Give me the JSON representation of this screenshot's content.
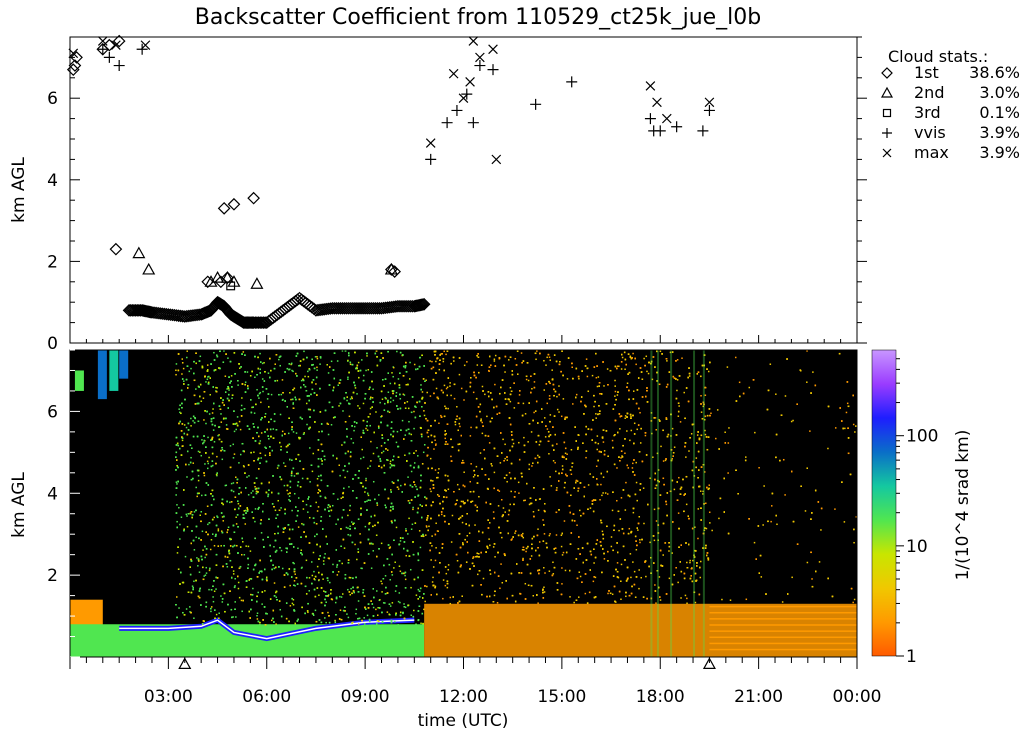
{
  "title": "Backscatter Coefficient from 110529_ct25k_jue_l0b",
  "chart_data": [
    {
      "type": "scatter",
      "panel": "cloud-base-heights",
      "ylabel": "km AGL",
      "ylim": [
        0,
        7.5
      ],
      "yticks": [
        0,
        2,
        4,
        6
      ],
      "xlim": [
        0,
        24
      ],
      "legend": {
        "title": "Cloud stats.:",
        "placement": "top-right",
        "entries": [
          {
            "symbol": "diamond",
            "label": "1st",
            "value": "38.6%"
          },
          {
            "symbol": "triangle",
            "label": "2nd",
            "value": "3.0%"
          },
          {
            "symbol": "square",
            "label": "3rd",
            "value": "0.1%"
          },
          {
            "symbol": "plus",
            "label": "vvis",
            "value": "3.9%"
          },
          {
            "symbol": "cross",
            "label": "max",
            "value": "3.9%"
          }
        ]
      },
      "series": [
        {
          "symbol": "diamond",
          "x": [
            0.1,
            0.15,
            0.2,
            1.0,
            1.2,
            1.5,
            1.8,
            2.2,
            2.5,
            3.0,
            3.5,
            4.0,
            4.3,
            4.5,
            4.7,
            4.9,
            5.1,
            5.3,
            5.6,
            6.0,
            6.5,
            7.0,
            7.5,
            8.0,
            8.5,
            9.0,
            9.5,
            10.0,
            10.5,
            10.8,
            4.2,
            4.6,
            4.8,
            4.7,
            5.0,
            5.6,
            1.4,
            9.8,
            9.9
          ],
          "y": [
            6.7,
            6.8,
            7.0,
            7.2,
            7.3,
            7.4,
            0.8,
            0.8,
            0.75,
            0.7,
            0.65,
            0.7,
            0.8,
            1.0,
            0.9,
            0.7,
            0.6,
            0.5,
            0.5,
            0.5,
            0.8,
            1.1,
            0.8,
            0.85,
            0.85,
            0.85,
            0.85,
            0.9,
            0.9,
            0.95,
            1.5,
            1.5,
            1.6,
            3.3,
            3.4,
            3.55,
            2.3,
            1.8,
            1.75
          ]
        },
        {
          "symbol": "triangle",
          "x": [
            2.1,
            2.4,
            4.3,
            4.5,
            4.8,
            5.0,
            5.7,
            9.8,
            3.5,
            19.5
          ],
          "y": [
            2.2,
            1.8,
            1.5,
            1.6,
            1.6,
            1.5,
            1.45,
            1.8,
            -0.1,
            -0.1
          ]
        },
        {
          "symbol": "square",
          "x": [
            4.9
          ],
          "y": [
            1.4
          ]
        },
        {
          "symbol": "plus",
          "x": [
            1.0,
            1.2,
            1.5,
            2.2,
            11.0,
            11.5,
            11.8,
            12.3,
            12.5,
            12.9,
            12.1,
            14.2,
            15.3,
            17.7,
            17.8,
            18.0,
            18.5,
            19.5,
            19.3
          ],
          "y": [
            7.2,
            7.0,
            6.8,
            7.2,
            4.5,
            5.4,
            5.7,
            5.4,
            6.8,
            6.7,
            6.1,
            5.85,
            6.4,
            5.5,
            5.2,
            5.2,
            5.3,
            5.7,
            5.2
          ]
        },
        {
          "symbol": "cross",
          "x": [
            0.1,
            1.0,
            1.4,
            2.3,
            11.0,
            11.7,
            12.0,
            12.3,
            12.5,
            12.9,
            12.2,
            13.0,
            17.7,
            17.9,
            18.2,
            19.5
          ],
          "y": [
            7.1,
            7.4,
            7.3,
            7.3,
            4.9,
            6.6,
            6.0,
            7.4,
            7.0,
            7.2,
            6.4,
            4.5,
            6.3,
            5.9,
            5.5,
            5.9
          ]
        }
      ]
    },
    {
      "type": "heatmap",
      "panel": "backscatter",
      "ylabel": "km AGL",
      "ylim": [
        0,
        7.5
      ],
      "yticks": [
        2,
        4,
        6
      ],
      "xlabel": "time (UTC)",
      "xlim": [
        0,
        24
      ],
      "xticks": [
        3,
        6,
        9,
        12,
        15,
        18,
        21,
        24
      ],
      "xticklabels": [
        "03:00",
        "06:00",
        "09:00",
        "12:00",
        "15:00",
        "18:00",
        "21:00",
        "00:00"
      ],
      "colorbar": {
        "label": "1/(10^4 srad km)",
        "scale": "log",
        "range": [
          1,
          600
        ],
        "ticks": [
          1,
          10,
          100
        ],
        "ticklabels": [
          "1",
          "10",
          "100"
        ],
        "colors": [
          "#ff5a00",
          "#ff9a00",
          "#f0c800",
          "#c8e600",
          "#50e650",
          "#14c8a0",
          "#0a6ec8",
          "#1e1eff",
          "#9a3cff",
          "#c896ff"
        ]
      },
      "background": "#000000",
      "regions": [
        {
          "name": "low-noise",
          "t0": 0,
          "t1": 24,
          "h0": 0,
          "h1": 1.4
        },
        {
          "name": "green-speckle",
          "t0": 3.2,
          "t1": 10.8,
          "h0": 0,
          "h1": 7.5
        },
        {
          "name": "orange-speckle",
          "t0": 10.8,
          "t1": 24,
          "h0": 0,
          "h1": 7.5
        },
        {
          "name": "cloud-blue",
          "t0": 0.8,
          "t1": 1.6,
          "h0": 6.3,
          "h1": 7.5
        }
      ]
    }
  ]
}
